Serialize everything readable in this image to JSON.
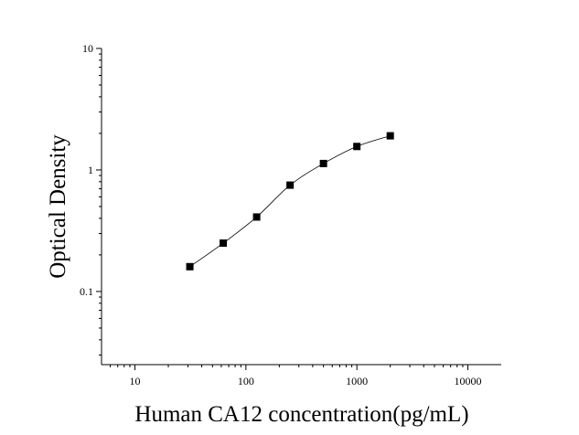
{
  "chart_data": {
    "type": "scatter",
    "title": "",
    "xlabel": "Human CA12 concentration(pg/mL)",
    "ylabel": "Optical Density",
    "x_scale": "log",
    "y_scale": "log",
    "xlim": [
      5,
      20000
    ],
    "ylim": [
      0.025,
      10
    ],
    "x_ticks": [
      {
        "value": 10,
        "label": "10"
      },
      {
        "value": 100,
        "label": "100"
      },
      {
        "value": 1000,
        "label": "1000"
      },
      {
        "value": 10000,
        "label": "10000"
      }
    ],
    "y_ticks": [
      {
        "value": 0.1,
        "label": "0.1"
      },
      {
        "value": 1,
        "label": "1"
      },
      {
        "value": 10,
        "label": "10"
      }
    ],
    "grid": false,
    "legend": "none",
    "series": [
      {
        "marker": "square",
        "color": "#000000",
        "fit_curve": true,
        "points": [
          {
            "x": 31.25,
            "y": 0.16
          },
          {
            "x": 62.5,
            "y": 0.25
          },
          {
            "x": 125,
            "y": 0.41
          },
          {
            "x": 250,
            "y": 0.75
          },
          {
            "x": 500,
            "y": 1.13
          },
          {
            "x": 1000,
            "y": 1.56
          },
          {
            "x": 2000,
            "y": 1.91
          }
        ]
      }
    ]
  }
}
